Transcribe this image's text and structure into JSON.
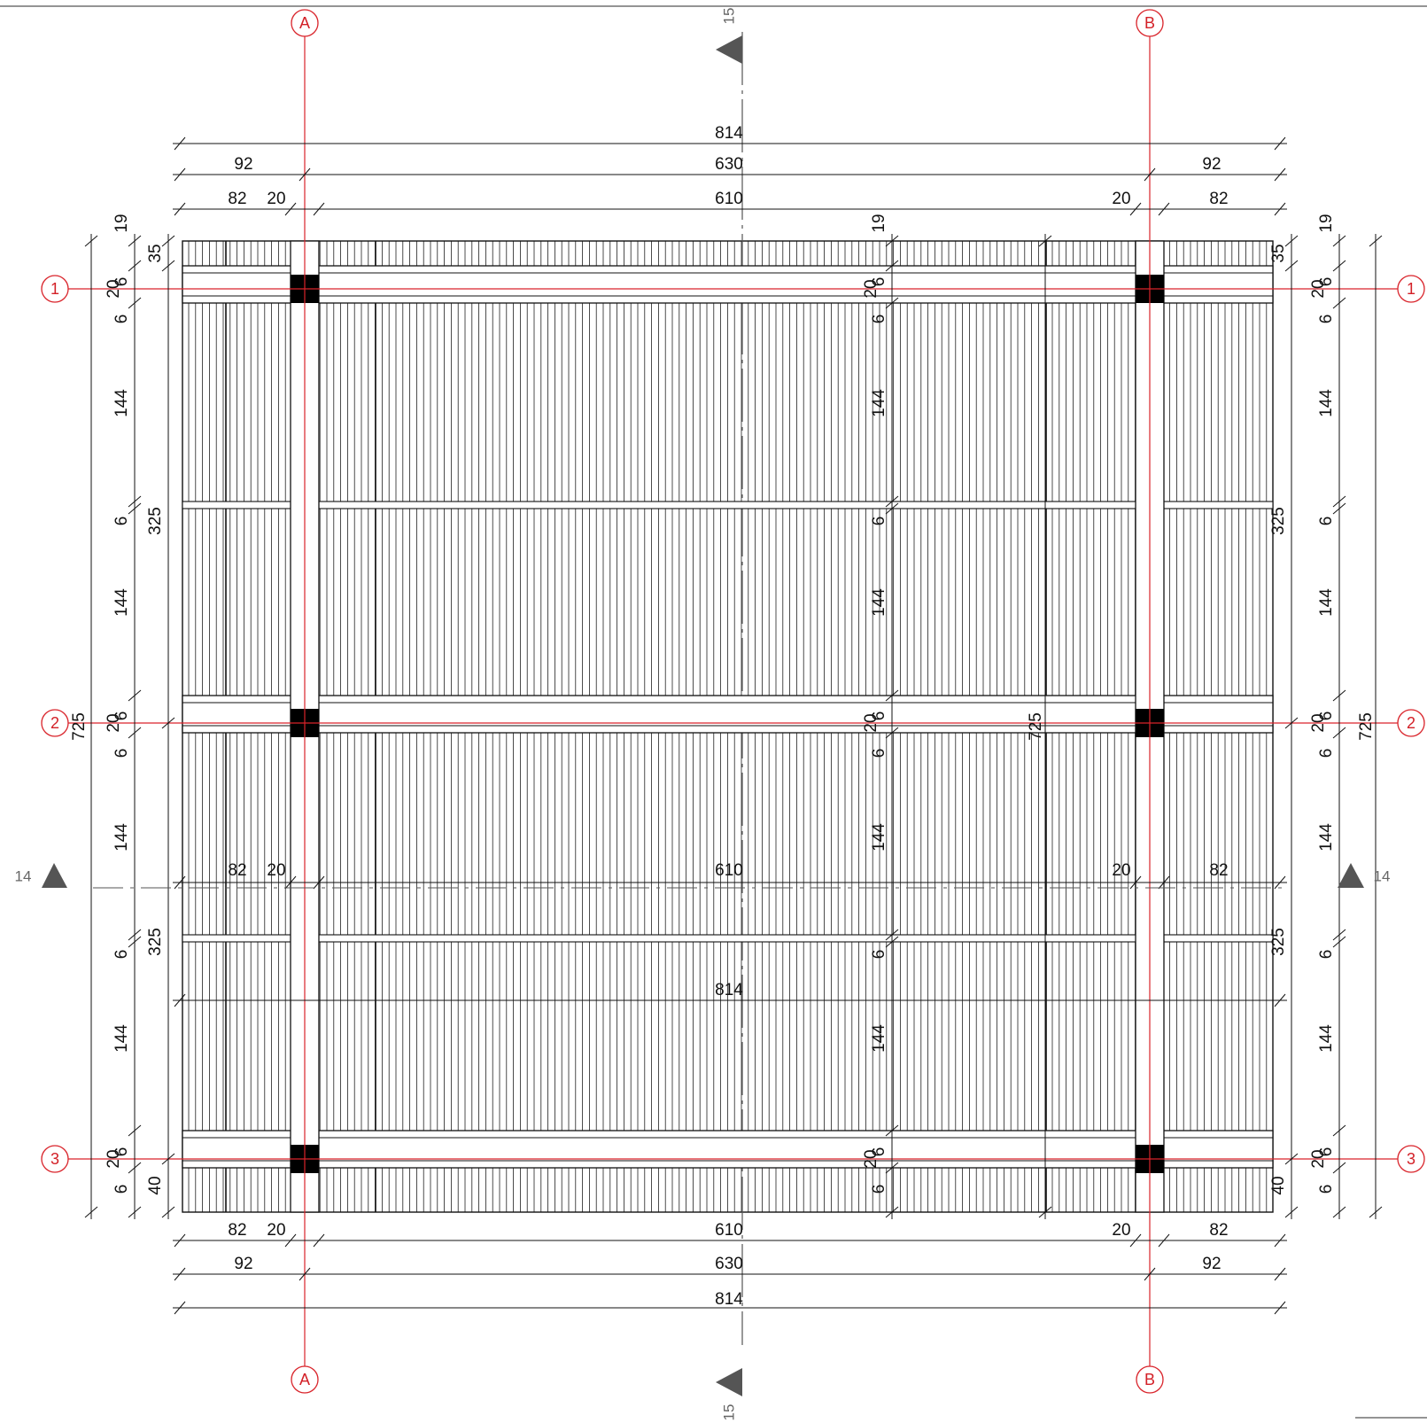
{
  "colors": {
    "grid": "#d9232a",
    "ink": "#111111",
    "section": "#555555",
    "background": "#ffffff"
  },
  "axes": {
    "columns": [
      "A",
      "B"
    ],
    "rows": [
      "1",
      "2",
      "3"
    ]
  },
  "sections": {
    "vertical": "15",
    "horizontal": "14"
  },
  "dims_h": {
    "total": "814",
    "span": "630",
    "clear": "610",
    "overhang": "92",
    "edge": "82",
    "post": "20"
  },
  "dims_v": {
    "total": "725",
    "bay": "325",
    "rafter": "144",
    "beam": "20",
    "purlin": "6",
    "top_gap": "19",
    "top_overhang": "35",
    "bottom_overhang": "40"
  }
}
